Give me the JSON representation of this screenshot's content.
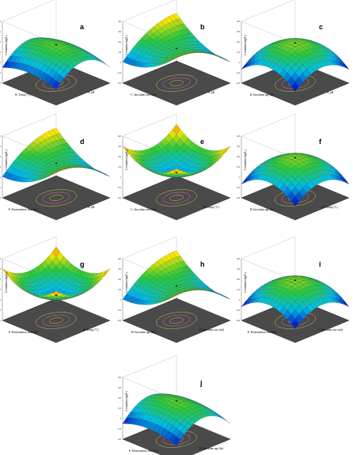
{
  "figure": {
    "panels": [
      {
        "letter": "a",
        "xlabel": "B: Temp (°C)",
        "ylabel": "Levantin (ng/L)",
        "zlabel": "A: pH",
        "shape": "ridge",
        "ticks": [
          "400",
          "300",
          "200",
          "100",
          "0",
          "-100",
          "-200"
        ]
      },
      {
        "letter": "b",
        "xlabel": "C: Inoculum size (ml)",
        "ylabel": "Levantin (ng/L)",
        "zlabel": "A: pH",
        "shape": "saddle",
        "ticks": [
          "400",
          "300",
          "200",
          "100",
          "0",
          "-100",
          "-200"
        ]
      },
      {
        "letter": "c",
        "xlabel": "D: Inoculum age (hr)",
        "ylabel": "Levantin (ng/L)",
        "zlabel": "A: pH",
        "shape": "dome",
        "ticks": [
          "400",
          "300",
          "200",
          "100",
          "0",
          "-100",
          "-200"
        ]
      },
      {
        "letter": "d",
        "xlabel": "E: Fermentation time (hr)",
        "ylabel": "Levantin (ng/L)",
        "zlabel": "A: pH",
        "shape": "saddle",
        "ticks": [
          "400",
          "300",
          "200",
          "100",
          "0",
          "-100",
          "-200"
        ]
      },
      {
        "letter": "e",
        "xlabel": "C: Inoculum size (ml)",
        "ylabel": "Levantin (ng/L)",
        "zlabel": "B: Temp (°C)",
        "shape": "bowl",
        "ticks": [
          "400",
          "300",
          "200",
          "100",
          "0",
          "-100",
          "-200"
        ]
      },
      {
        "letter": "f",
        "xlabel": "D: Inoculum age (hr)",
        "ylabel": "Levantin (ng/L)",
        "zlabel": "B: Temp (°C)",
        "shape": "dome",
        "ticks": [
          "400",
          "300",
          "200",
          "100",
          "0",
          "-100",
          "-200"
        ]
      },
      {
        "letter": "g",
        "xlabel": "E: Fermentation time (hr)",
        "ylabel": "Levantin (ng/L)",
        "zlabel": "B: Temp (°C)",
        "shape": "bowl",
        "ticks": [
          "400",
          "300",
          "200",
          "100",
          "0",
          "-100",
          "-200"
        ]
      },
      {
        "letter": "h",
        "xlabel": "D: Inoculum age (hr)",
        "ylabel": "Levantin (ng/L)",
        "zlabel": "C: Inoculum size (ml)",
        "shape": "saddle",
        "ticks": [
          "400",
          "300",
          "200",
          "100",
          "0",
          "-100",
          "-200"
        ]
      },
      {
        "letter": "i",
        "xlabel": "E: Fermentation time (hr)",
        "ylabel": "Levantin (ng/L)",
        "zlabel": "C: Inoculum size (ml)",
        "shape": "dome",
        "ticks": [
          "400",
          "300",
          "200",
          "100",
          "0",
          "-100",
          "-200"
        ]
      },
      {
        "letter": "j",
        "xlabel": "E: Fermentation time (hr)",
        "ylabel": "Levantin (ng/L)",
        "zlabel": "D: Inoculum age (hr)",
        "shape": "ridge",
        "ticks": [
          "400",
          "300",
          "200",
          "100",
          "0",
          "-100",
          "-200"
        ]
      }
    ]
  },
  "chart_data": {
    "type": "surface",
    "response": "Levantin (ng/L)",
    "zlim": [
      -200,
      400
    ],
    "surfaces": [
      {
        "panel": "a",
        "x": "B: Temp (°C)",
        "y": "A: pH"
      },
      {
        "panel": "b",
        "x": "C: Inoculum size (ml)",
        "y": "A: pH"
      },
      {
        "panel": "c",
        "x": "D: Inoculum age (hr)",
        "y": "A: pH"
      },
      {
        "panel": "d",
        "x": "E: Fermentation time (hr)",
        "y": "A: pH"
      },
      {
        "panel": "e",
        "x": "C: Inoculum size (ml)",
        "y": "B: Temp (°C)"
      },
      {
        "panel": "f",
        "x": "D: Inoculum age (hr)",
        "y": "B: Temp (°C)"
      },
      {
        "panel": "g",
        "x": "E: Fermentation time (hr)",
        "y": "B: Temp (°C)"
      },
      {
        "panel": "h",
        "x": "D: Inoculum age (hr)",
        "y": "C: Inoculum size (ml)"
      },
      {
        "panel": "i",
        "x": "E: Fermentation time (hr)",
        "y": "C: Inoculum size (ml)"
      },
      {
        "panel": "j",
        "x": "E: Fermentation time (hr)",
        "y": "D: Inoculum age (hr)"
      }
    ]
  }
}
